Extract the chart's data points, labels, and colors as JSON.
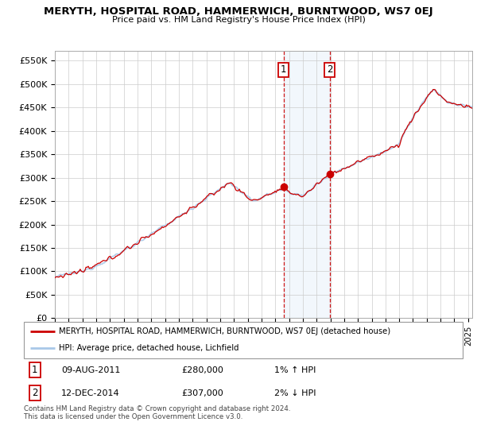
{
  "title": "MERYTH, HOSPITAL ROAD, HAMMERWICH, BURNTWOOD, WS7 0EJ",
  "subtitle": "Price paid vs. HM Land Registry's House Price Index (HPI)",
  "ylabel_ticks": [
    "£0",
    "£50K",
    "£100K",
    "£150K",
    "£200K",
    "£250K",
    "£300K",
    "£350K",
    "£400K",
    "£450K",
    "£500K",
    "£550K"
  ],
  "ylim": [
    0,
    570000
  ],
  "xlim_start": 1995.0,
  "xlim_end": 2025.3,
  "legend_line1": "MERYTH, HOSPITAL ROAD, HAMMERWICH, BURNTWOOD, WS7 0EJ (detached house)",
  "legend_line2": "HPI: Average price, detached house, Lichfield",
  "annotation1": {
    "label": "1",
    "date_str": "09-AUG-2011",
    "price": "£280,000",
    "pct": "1% ↑ HPI",
    "x": 2011.6
  },
  "annotation2": {
    "label": "2",
    "date_str": "12-DEC-2014",
    "price": "£307,000",
    "pct": "2% ↓ HPI",
    "x": 2014.95
  },
  "footnote": "Contains HM Land Registry data © Crown copyright and database right 2024.\nThis data is licensed under the Open Government Licence v3.0.",
  "hpi_color": "#a8c8e8",
  "price_color": "#cc0000",
  "shaded_region_color": "#daeaf8",
  "grid_color": "#cccccc",
  "background_color": "#ffffff",
  "sale1_x": 2011.6,
  "sale1_y": 280000,
  "sale2_x": 2014.95,
  "sale2_y": 307000
}
